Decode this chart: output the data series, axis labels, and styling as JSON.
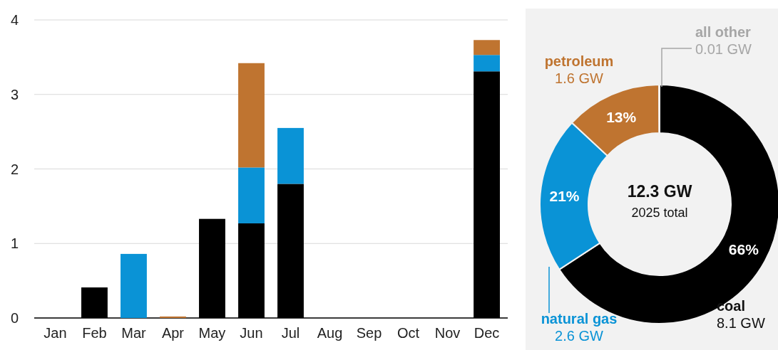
{
  "chart_data": [
    {
      "type": "bar",
      "stacked": true,
      "categories": [
        "Jan",
        "Feb",
        "Mar",
        "Apr",
        "May",
        "Jun",
        "Jul",
        "Aug",
        "Sep",
        "Oct",
        "Nov",
        "Dec"
      ],
      "series": [
        {
          "color": "#000000",
          "values": [
            0,
            0.41,
            0,
            0,
            1.33,
            1.27,
            1.8,
            0,
            0,
            0,
            0,
            3.31
          ]
        },
        {
          "color": "#0a93d6",
          "values": [
            0,
            0,
            0.86,
            0,
            0,
            0.75,
            0.75,
            0,
            0,
            0,
            0,
            0.22
          ]
        },
        {
          "color": "#bf7430",
          "values": [
            0,
            0,
            0,
            0.02,
            0,
            1.4,
            0,
            0,
            0,
            0,
            0,
            0.2
          ]
        }
      ],
      "ylim": [
        0,
        4
      ],
      "yticks": [
        0,
        1,
        2,
        3,
        4
      ],
      "grid": "y"
    },
    {
      "type": "donut",
      "categories": [
        "coal",
        "natural gas",
        "petroleum",
        "all other"
      ],
      "values": [
        8.1,
        2.6,
        1.6,
        0.01
      ],
      "colors": [
        "#000000",
        "#0a93d6",
        "#bf7430",
        "#a6a6a6"
      ],
      "value_labels": [
        "8.1 GW",
        "2.6 GW",
        "1.6 GW",
        "0.01 GW"
      ],
      "annotations": [
        "12.3 GW",
        "2025 total",
        {
          "text": "66%",
          "x": "coal"
        },
        {
          "text": "21%",
          "x": "natural gas"
        },
        {
          "text": "13%",
          "x": "petroleum"
        }
      ]
    }
  ]
}
